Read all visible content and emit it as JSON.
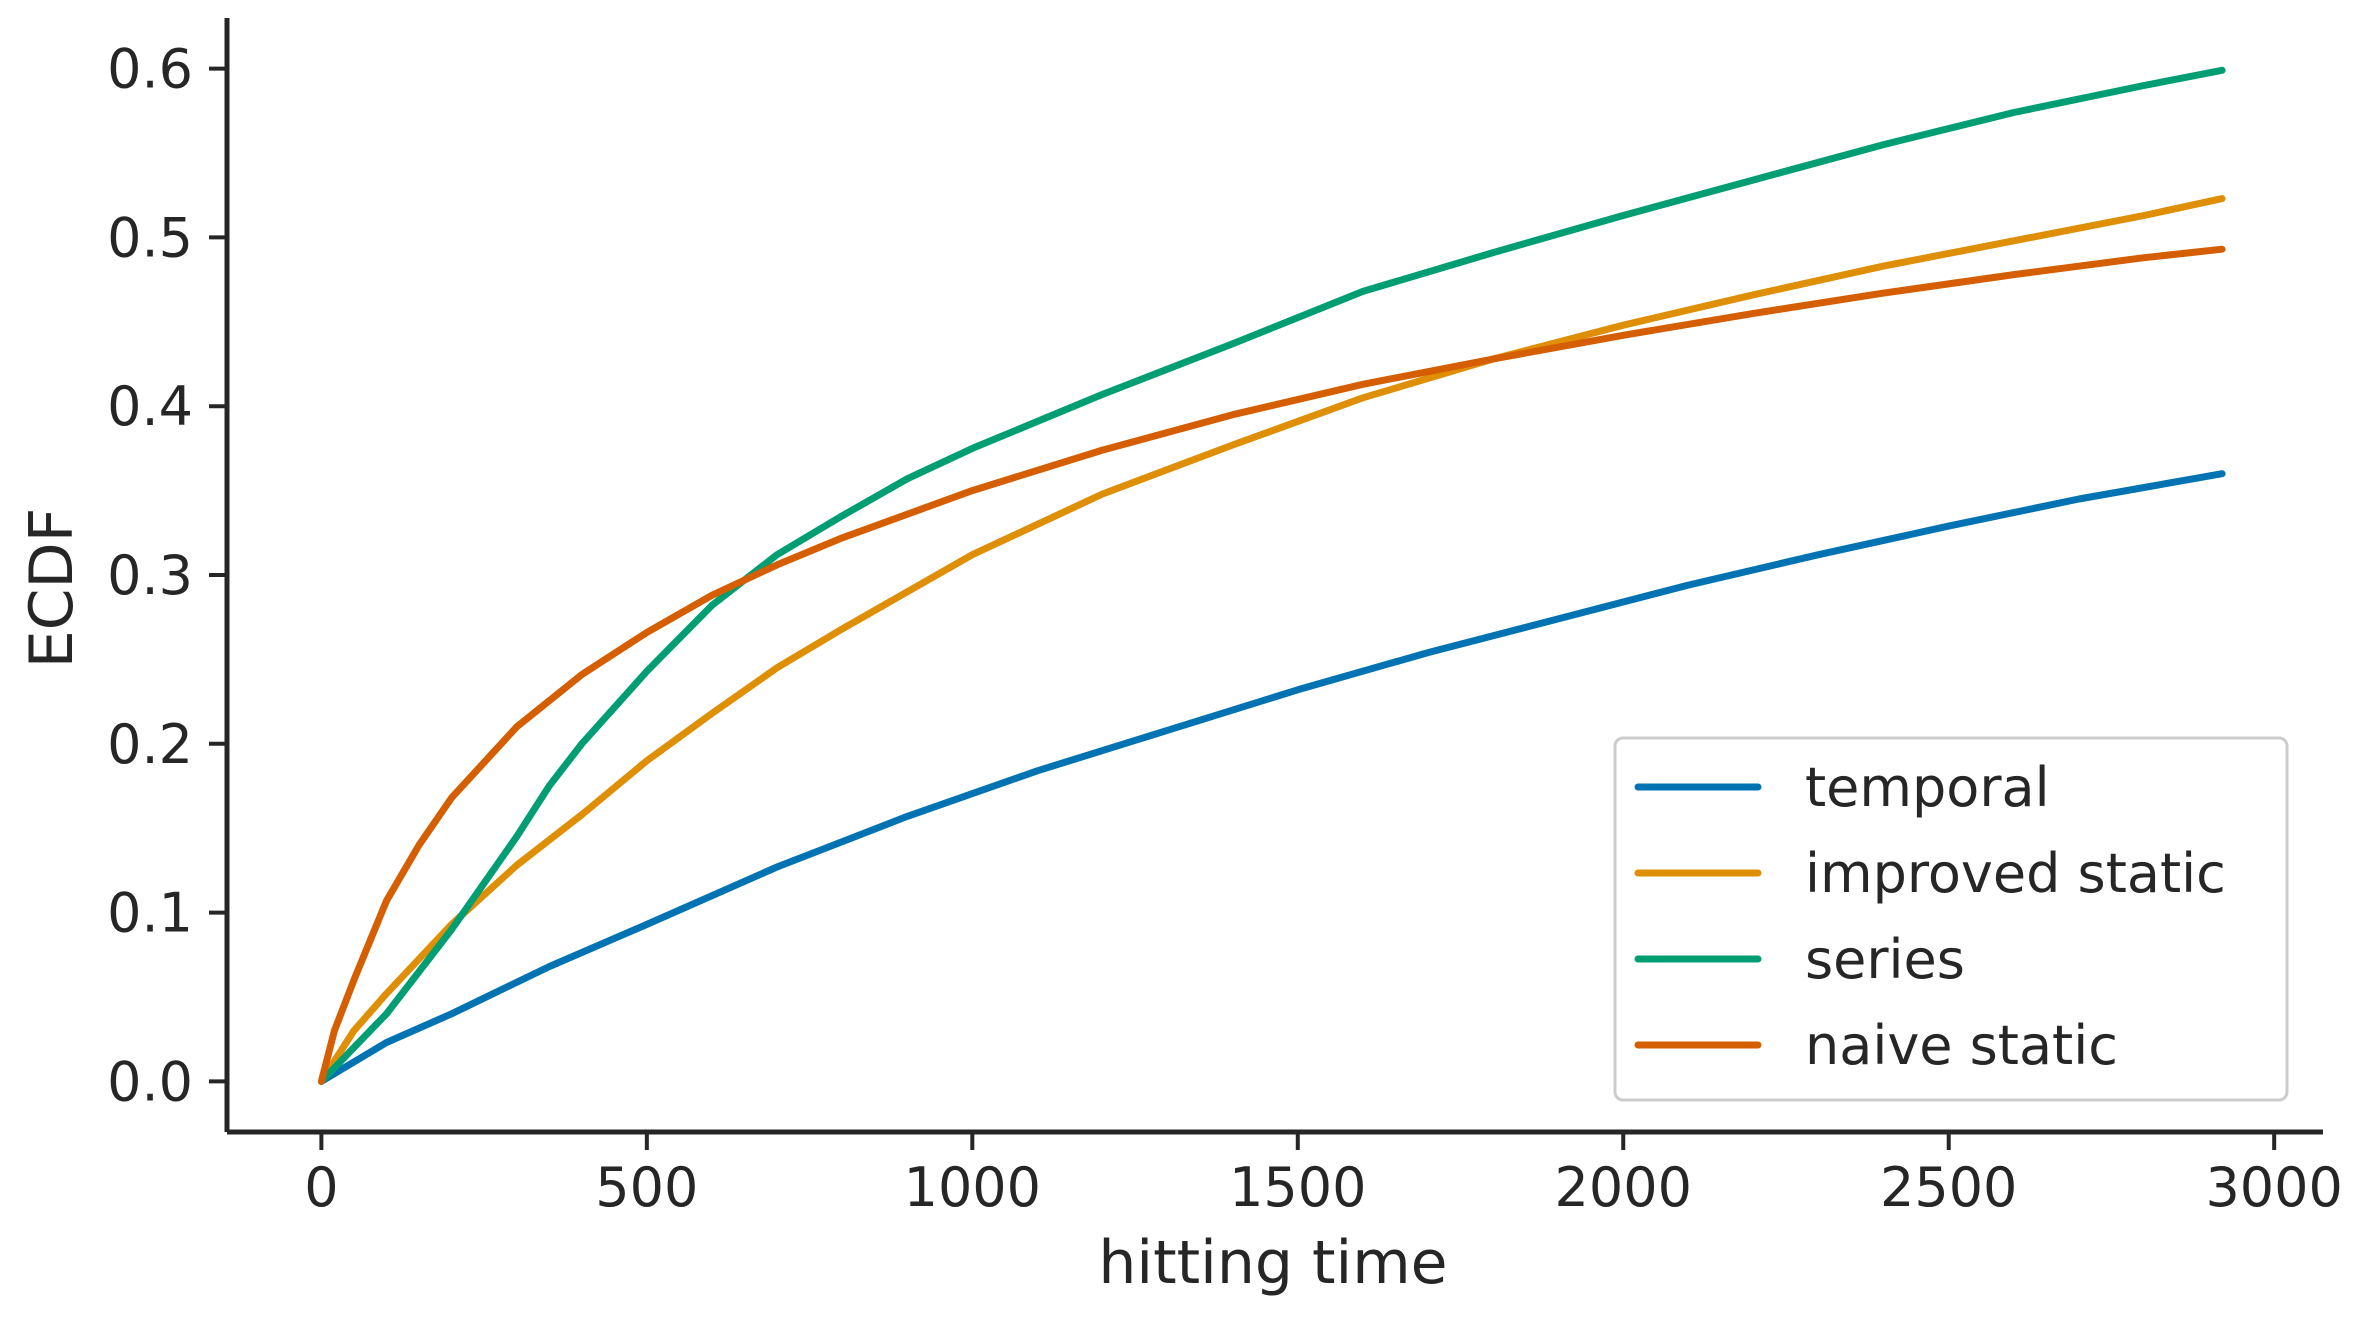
{
  "chart_data": {
    "type": "line",
    "xlabel": "hitting time",
    "ylabel": "ECDF",
    "xlim": [
      -145,
      3075
    ],
    "ylim": [
      -0.03,
      0.63
    ],
    "xticks": [
      0,
      500,
      1000,
      1500,
      2000,
      2500,
      3000
    ],
    "xtick_labels": [
      "0",
      "500",
      "1000",
      "1500",
      "2000",
      "2500",
      "3000"
    ],
    "yticks": [
      0.0,
      0.1,
      0.2,
      0.3,
      0.4,
      0.5,
      0.6
    ],
    "ytick_labels": [
      "0.0",
      "0.1",
      "0.2",
      "0.3",
      "0.4",
      "0.5",
      "0.6"
    ],
    "grid": false,
    "legend_position": "lower-right",
    "series": [
      {
        "name": "temporal",
        "color": "#0173b2",
        "x": [
          0,
          100,
          200,
          350,
          500,
          700,
          900,
          1100,
          1300,
          1500,
          1700,
          1900,
          2100,
          2300,
          2500,
          2700,
          2920
        ],
        "y": [
          0.0,
          0.023,
          0.04,
          0.068,
          0.093,
          0.127,
          0.157,
          0.184,
          0.208,
          0.232,
          0.254,
          0.274,
          0.294,
          0.312,
          0.329,
          0.345,
          0.36
        ]
      },
      {
        "name": "improved static",
        "color": "#de8f05",
        "x": [
          0,
          50,
          100,
          200,
          300,
          400,
          500,
          600,
          700,
          800,
          1000,
          1200,
          1400,
          1600,
          1800,
          2000,
          2200,
          2400,
          2600,
          2800,
          2920
        ],
        "y": [
          0.0,
          0.03,
          0.052,
          0.093,
          0.128,
          0.158,
          0.19,
          0.218,
          0.245,
          0.268,
          0.312,
          0.348,
          0.377,
          0.405,
          0.428,
          0.448,
          0.466,
          0.483,
          0.498,
          0.513,
          0.523
        ]
      },
      {
        "name": "series",
        "color": "#029e73",
        "x": [
          0,
          50,
          100,
          200,
          300,
          350,
          400,
          500,
          600,
          700,
          800,
          900,
          1000,
          1100,
          1200,
          1400,
          1600,
          1800,
          2000,
          2200,
          2400,
          2600,
          2800,
          2920
        ],
        "y": [
          0.0,
          0.02,
          0.04,
          0.09,
          0.145,
          0.175,
          0.2,
          0.243,
          0.282,
          0.312,
          0.335,
          0.357,
          0.375,
          0.391,
          0.407,
          0.437,
          0.468,
          0.491,
          0.513,
          0.534,
          0.555,
          0.574,
          0.59,
          0.599
        ]
      },
      {
        "name": "naive static",
        "color": "#d55e00",
        "x": [
          0,
          20,
          50,
          100,
          150,
          200,
          300,
          400,
          500,
          600,
          700,
          800,
          1000,
          1200,
          1400,
          1600,
          1800,
          2000,
          2200,
          2400,
          2600,
          2800,
          2920
        ],
        "y": [
          0.0,
          0.03,
          0.06,
          0.107,
          0.14,
          0.168,
          0.21,
          0.241,
          0.266,
          0.288,
          0.306,
          0.322,
          0.35,
          0.374,
          0.395,
          0.413,
          0.428,
          0.442,
          0.455,
          0.467,
          0.478,
          0.488,
          0.493
        ]
      }
    ]
  }
}
